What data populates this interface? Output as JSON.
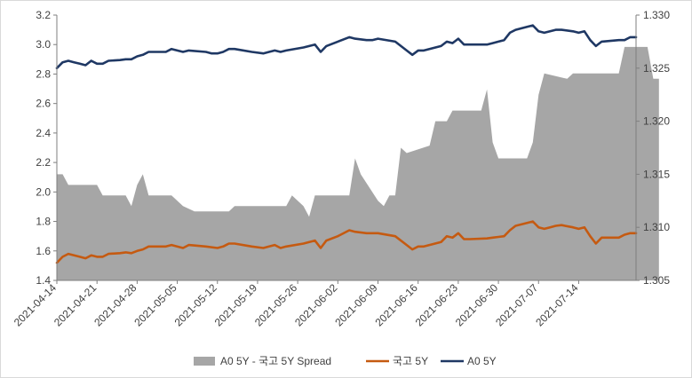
{
  "chart_data": {
    "type": "area+line",
    "title": "",
    "xlabel": "",
    "ylabel": "",
    "y_left": {
      "min": 1.4,
      "max": 3.2,
      "ticks": [
        "1.4",
        "1.6",
        "1.8",
        "2.0",
        "2.2",
        "2.4",
        "2.6",
        "2.8",
        "3.0",
        "3.2"
      ]
    },
    "y_right": {
      "min": 1.305,
      "max": 1.33,
      "ticks": [
        "1.305",
        "1.310",
        "1.315",
        "1.320",
        "1.325",
        "1.330"
      ]
    },
    "x_ticks": [
      "2021-04-14",
      "2021-04-21",
      "2021-04-28",
      "2021-05-05",
      "2021-05-12",
      "2021-05-19",
      "2021-05-26",
      "2021-06-02",
      "2021-06-09",
      "2021-06-16",
      "2021-06-23",
      "2021-06-30",
      "2021-07-07",
      "2021-07-14"
    ],
    "grid": false,
    "legend_position": "bottom",
    "legend": [
      {
        "name": "A0 5Y - 국고 5Y Spread",
        "color": "#A6A6A6",
        "kind": "area"
      },
      {
        "name": "국고 5Y",
        "color": "#C55A11",
        "kind": "line"
      },
      {
        "name": "A0 5Y",
        "color": "#1F3864",
        "kind": "line"
      }
    ],
    "series": [
      {
        "name": "A0 5Y - 국고 5Y Spread",
        "axis": "right",
        "kind": "area",
        "color": "#A6A6A6",
        "points": [
          [
            0,
            1.315
          ],
          [
            1,
            1.315
          ],
          [
            2,
            1.314
          ],
          [
            7,
            1.314
          ],
          [
            8,
            1.313
          ],
          [
            12,
            1.313
          ],
          [
            13,
            1.312
          ],
          [
            14,
            1.314
          ],
          [
            15,
            1.315
          ],
          [
            16,
            1.313
          ],
          [
            20,
            1.313
          ],
          [
            22,
            1.312
          ],
          [
            24,
            1.3115
          ],
          [
            30,
            1.3115
          ],
          [
            31,
            1.312
          ],
          [
            40,
            1.312
          ],
          [
            41,
            1.313
          ],
          [
            43,
            1.312
          ],
          [
            44,
            1.311
          ],
          [
            45,
            1.313
          ],
          [
            51,
            1.313
          ],
          [
            52,
            1.3165
          ],
          [
            53,
            1.315
          ],
          [
            56,
            1.3125
          ],
          [
            57,
            1.312
          ],
          [
            58,
            1.313
          ],
          [
            59,
            1.313
          ],
          [
            60,
            1.3175
          ],
          [
            61,
            1.317
          ],
          [
            65,
            1.3177
          ],
          [
            66,
            1.32
          ],
          [
            68,
            1.32
          ],
          [
            69,
            1.321
          ],
          [
            74,
            1.321
          ],
          [
            75,
            1.323
          ],
          [
            76,
            1.318
          ],
          [
            77,
            1.3165
          ],
          [
            82,
            1.3165
          ],
          [
            83,
            1.318
          ],
          [
            84,
            1.3225
          ],
          [
            85,
            1.3245
          ],
          [
            89,
            1.324
          ],
          [
            90,
            1.3245
          ],
          [
            98,
            1.3245
          ],
          [
            99,
            1.327
          ],
          [
            103,
            1.327
          ],
          [
            104,
            1.324
          ],
          [
            105,
            1.324
          ]
        ]
      },
      {
        "name": "국고 5Y",
        "axis": "left",
        "kind": "line",
        "color": "#C55A11",
        "points": [
          [
            0,
            1.52
          ],
          [
            1,
            1.56
          ],
          [
            2,
            1.58
          ],
          [
            3,
            1.57
          ],
          [
            4,
            1.56
          ],
          [
            5,
            1.55
          ],
          [
            6,
            1.57
          ],
          [
            7,
            1.56
          ],
          [
            8,
            1.56
          ],
          [
            9,
            1.58
          ],
          [
            11,
            1.585
          ],
          [
            12,
            1.59
          ],
          [
            13,
            1.585
          ],
          [
            14,
            1.6
          ],
          [
            15,
            1.61
          ],
          [
            16,
            1.63
          ],
          [
            19,
            1.63
          ],
          [
            20,
            1.64
          ],
          [
            22,
            1.62
          ],
          [
            23,
            1.64
          ],
          [
            26,
            1.63
          ],
          [
            28,
            1.62
          ],
          [
            29,
            1.63
          ],
          [
            30,
            1.65
          ],
          [
            31,
            1.65
          ],
          [
            34,
            1.63
          ],
          [
            36,
            1.62
          ],
          [
            37,
            1.63
          ],
          [
            38,
            1.64
          ],
          [
            39,
            1.62
          ],
          [
            40,
            1.63
          ],
          [
            43,
            1.65
          ],
          [
            45,
            1.67
          ],
          [
            46,
            1.62
          ],
          [
            47,
            1.67
          ],
          [
            49,
            1.7
          ],
          [
            51,
            1.74
          ],
          [
            52,
            1.73
          ],
          [
            54,
            1.72
          ],
          [
            55,
            1.72
          ],
          [
            56,
            1.72
          ],
          [
            59,
            1.7
          ],
          [
            61,
            1.64
          ],
          [
            62,
            1.61
          ],
          [
            63,
            1.63
          ],
          [
            64,
            1.63
          ],
          [
            67,
            1.66
          ],
          [
            68,
            1.7
          ],
          [
            69,
            1.69
          ],
          [
            70,
            1.72
          ],
          [
            71,
            1.68
          ],
          [
            72,
            1.68
          ],
          [
            75,
            1.685
          ],
          [
            76,
            1.69
          ],
          [
            77,
            1.695
          ],
          [
            78,
            1.7
          ],
          [
            79,
            1.74
          ],
          [
            80,
            1.77
          ],
          [
            82,
            1.79
          ],
          [
            83,
            1.8
          ],
          [
            84,
            1.76
          ],
          [
            85,
            1.75
          ],
          [
            86,
            1.76
          ],
          [
            87,
            1.77
          ],
          [
            88,
            1.775
          ],
          [
            90,
            1.76
          ],
          [
            91,
            1.75
          ],
          [
            92,
            1.76
          ],
          [
            93,
            1.7
          ],
          [
            94,
            1.65
          ],
          [
            95,
            1.69
          ],
          [
            98,
            1.69
          ],
          [
            99,
            1.71
          ],
          [
            100,
            1.72
          ],
          [
            101,
            1.72
          ]
        ]
      },
      {
        "name": "A0 5Y",
        "axis": "left",
        "kind": "line",
        "color": "#1F3864",
        "points": [
          [
            0,
            2.84
          ],
          [
            1,
            2.88
          ],
          [
            2,
            2.89
          ],
          [
            3,
            2.88
          ],
          [
            4,
            2.87
          ],
          [
            5,
            2.86
          ],
          [
            6,
            2.89
          ],
          [
            7,
            2.87
          ],
          [
            8,
            2.87
          ],
          [
            9,
            2.89
          ],
          [
            11,
            2.895
          ],
          [
            12,
            2.9
          ],
          [
            13,
            2.9
          ],
          [
            14,
            2.92
          ],
          [
            15,
            2.93
          ],
          [
            16,
            2.95
          ],
          [
            19,
            2.95
          ],
          [
            20,
            2.97
          ],
          [
            22,
            2.95
          ],
          [
            23,
            2.96
          ],
          [
            26,
            2.95
          ],
          [
            27,
            2.94
          ],
          [
            28,
            2.94
          ],
          [
            29,
            2.95
          ],
          [
            30,
            2.97
          ],
          [
            31,
            2.97
          ],
          [
            34,
            2.95
          ],
          [
            36,
            2.94
          ],
          [
            37,
            2.95
          ],
          [
            38,
            2.96
          ],
          [
            39,
            2.95
          ],
          [
            40,
            2.96
          ],
          [
            43,
            2.98
          ],
          [
            45,
            3.0
          ],
          [
            46,
            2.95
          ],
          [
            47,
            2.99
          ],
          [
            49,
            3.02
          ],
          [
            51,
            3.05
          ],
          [
            52,
            3.04
          ],
          [
            54,
            3.03
          ],
          [
            55,
            3.03
          ],
          [
            56,
            3.04
          ],
          [
            59,
            3.02
          ],
          [
            61,
            2.96
          ],
          [
            62,
            2.93
          ],
          [
            63,
            2.96
          ],
          [
            64,
            2.96
          ],
          [
            67,
            2.99
          ],
          [
            68,
            3.02
          ],
          [
            69,
            3.01
          ],
          [
            70,
            3.04
          ],
          [
            71,
            3.0
          ],
          [
            72,
            3.0
          ],
          [
            75,
            3.0
          ],
          [
            76,
            3.01
          ],
          [
            77,
            3.02
          ],
          [
            78,
            3.03
          ],
          [
            79,
            3.08
          ],
          [
            80,
            3.1
          ],
          [
            82,
            3.12
          ],
          [
            83,
            3.13
          ],
          [
            84,
            3.09
          ],
          [
            85,
            3.08
          ],
          [
            86,
            3.09
          ],
          [
            87,
            3.1
          ],
          [
            88,
            3.1
          ],
          [
            90,
            3.09
          ],
          [
            91,
            3.08
          ],
          [
            92,
            3.09
          ],
          [
            93,
            3.03
          ],
          [
            94,
            2.99
          ],
          [
            95,
            3.02
          ],
          [
            98,
            3.03
          ],
          [
            99,
            3.03
          ],
          [
            100,
            3.05
          ],
          [
            101,
            3.05
          ]
        ]
      }
    ]
  }
}
